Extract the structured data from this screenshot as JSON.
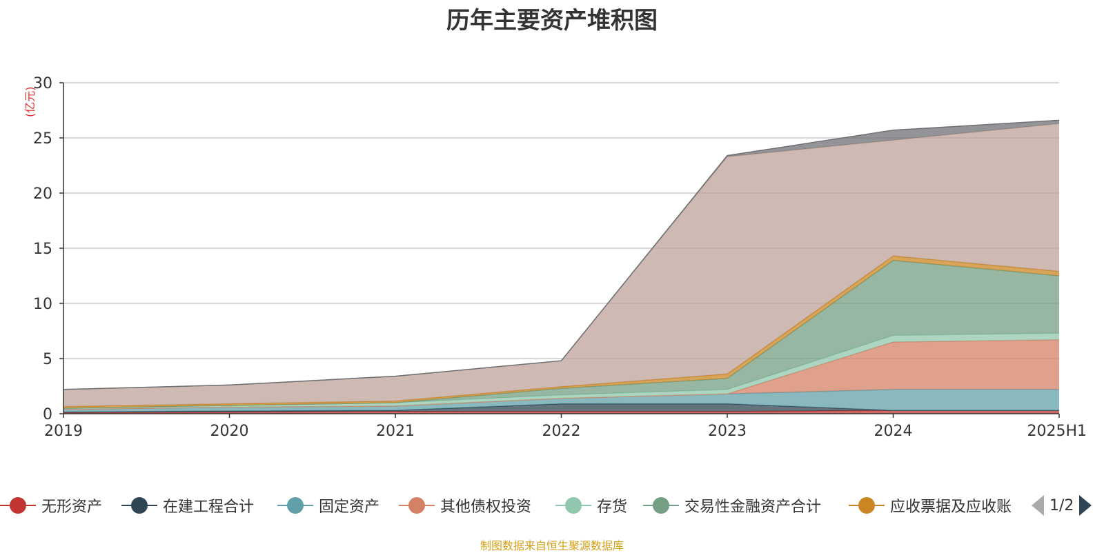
{
  "title": "历年主要资产堆积图",
  "unit_label": "(亿元)",
  "source": "制图数据来自恒生聚源数据库",
  "pager": "1/2",
  "legend": [
    {
      "name": "无形资产",
      "color": "#c23531"
    },
    {
      "name": "在建工程合计",
      "color": "#2f4554"
    },
    {
      "name": "固定资产",
      "color": "#61a0a8"
    },
    {
      "name": "其他债权投资",
      "color": "#d48265"
    },
    {
      "name": "存货",
      "color": "#91c7ae"
    },
    {
      "name": "交易性金融资产合计",
      "color": "#749f83"
    },
    {
      "name": "应收票据及应收账",
      "color": "#ca8622"
    }
  ],
  "chart_data": {
    "type": "area",
    "stacked": true,
    "title": "历年主要资产堆积图",
    "ylabel": "(亿元)",
    "ylim": [
      0,
      30
    ],
    "yticks": [
      0,
      5,
      10,
      15,
      20,
      25,
      30
    ],
    "grid": true,
    "legend_position": "bottom",
    "categories": [
      "2019",
      "2020",
      "2021",
      "2022",
      "2023",
      "2024",
      "2025H1"
    ],
    "series": [
      {
        "name": "无形资产",
        "color": "#c23531",
        "values": [
          0.1,
          0.15,
          0.2,
          0.2,
          0.2,
          0.3,
          0.3
        ]
      },
      {
        "name": "在建工程合计",
        "color": "#2f4554",
        "values": [
          0.05,
          0.1,
          0.1,
          0.7,
          0.7,
          0.0,
          0.0
        ]
      },
      {
        "name": "固定资产",
        "color": "#61a0a8",
        "values": [
          0.25,
          0.35,
          0.4,
          0.5,
          0.9,
          1.9,
          1.9
        ]
      },
      {
        "name": "其他债权投资",
        "color": "#d48265",
        "values": [
          0,
          0,
          0,
          0,
          0,
          4.3,
          4.5
        ]
      },
      {
        "name": "存货",
        "color": "#91c7ae",
        "values": [
          0.1,
          0.15,
          0.3,
          0.3,
          0.4,
          0.6,
          0.6
        ]
      },
      {
        "name": "交易性金融资产合计",
        "color": "#749f83",
        "values": [
          0,
          0,
          0,
          0.6,
          1.0,
          6.8,
          5.2
        ]
      },
      {
        "name": "应收票据及应收账",
        "color": "#ca8622",
        "values": [
          0.15,
          0.15,
          0.15,
          0.15,
          0.4,
          0.4,
          0.4
        ]
      },
      {
        "name": "",
        "color": "#bda29a",
        "values": [
          1.55,
          1.7,
          2.25,
          2.35,
          19.7,
          10.5,
          13.4
        ]
      },
      {
        "name": "",
        "color": "#6e7074",
        "values": [
          0,
          0,
          0,
          0,
          0.1,
          0.9,
          0.3
        ]
      }
    ]
  }
}
